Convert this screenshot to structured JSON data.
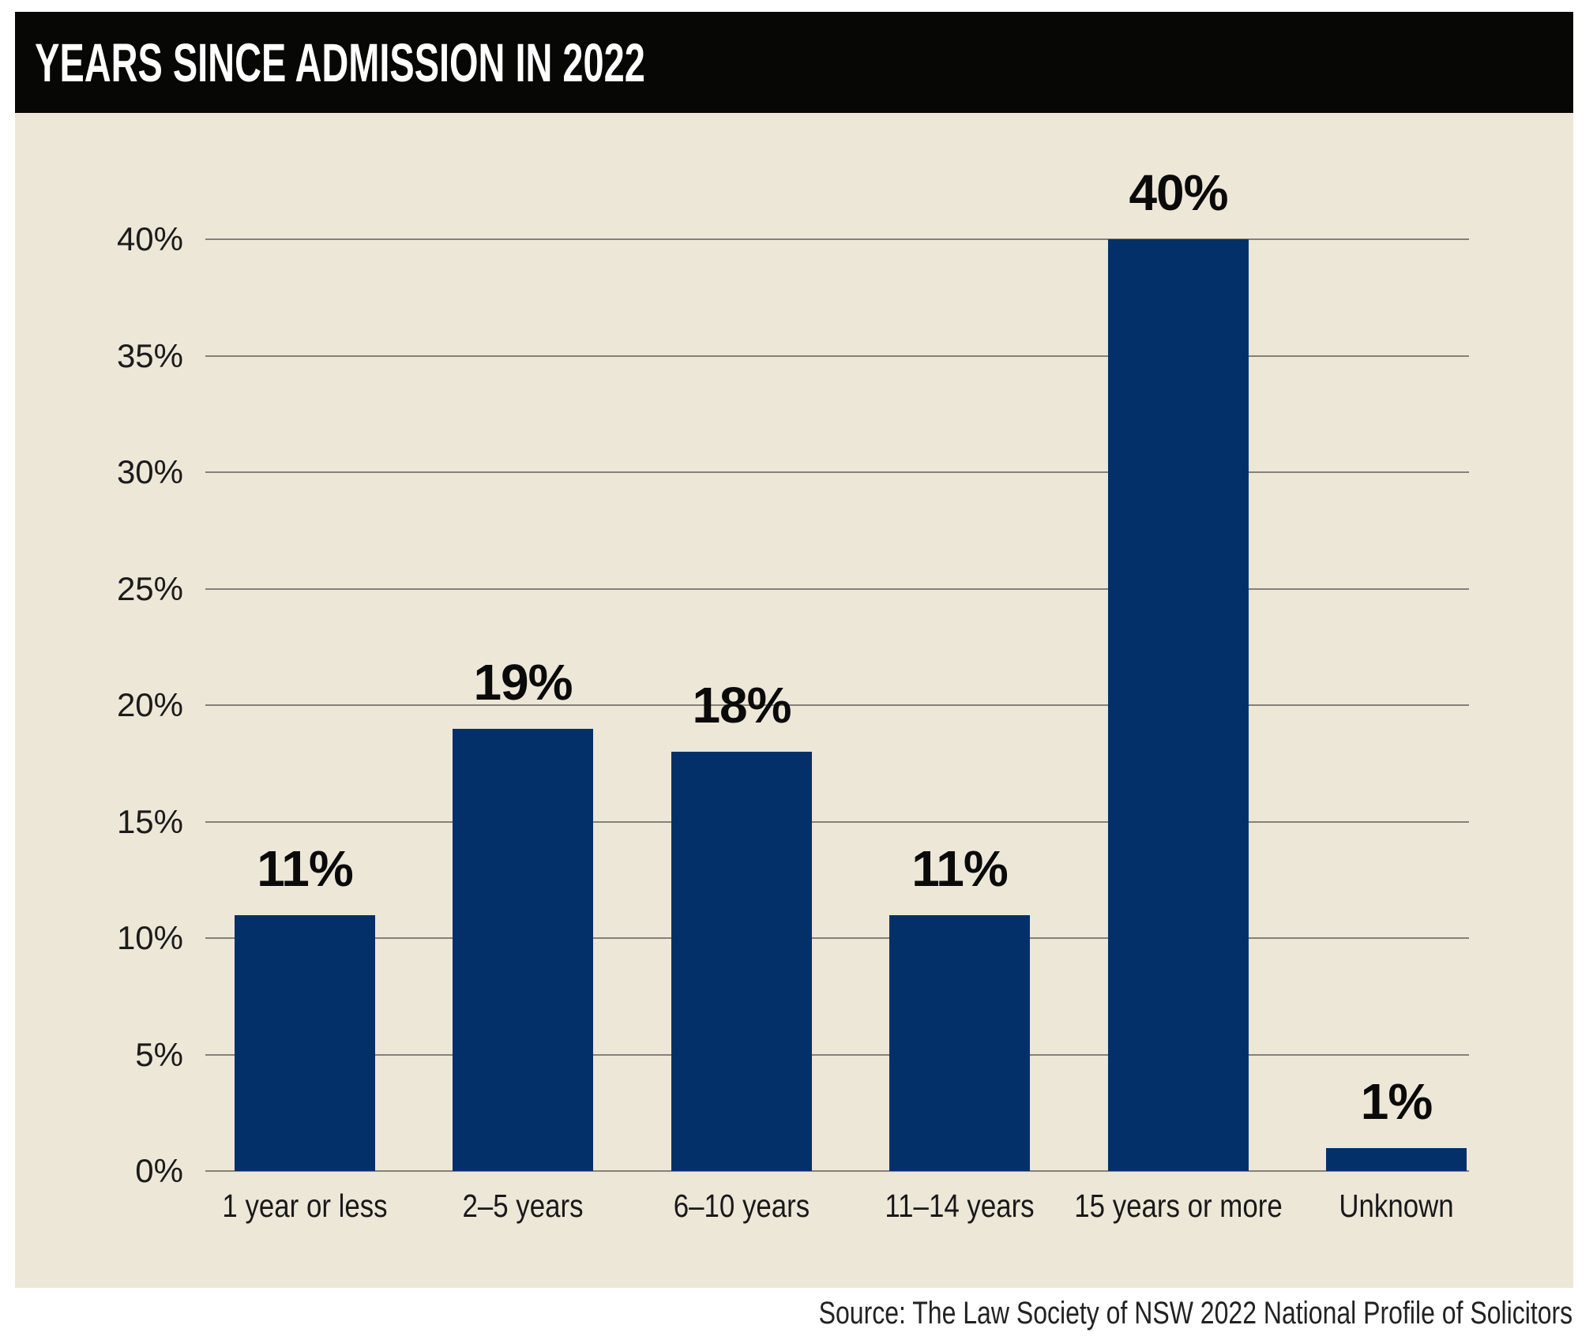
{
  "header": {
    "title": "YEARS SINCE ADMISSION IN 2022"
  },
  "source": {
    "text": "Source: The Law Society of NSW 2022 National Profile of Solicitors"
  },
  "colors": {
    "page_bg": "#ffffff",
    "header_bg": "#070705",
    "header_text": "#ffffff",
    "chart_bg": "#ede7d8",
    "bar": "#04306a",
    "grid_line": "#85817a",
    "tick_text": "#1b1b1b",
    "value_text": "#0a0a0a"
  },
  "chart_data": {
    "type": "bar",
    "title": "YEARS SINCE ADMISSION IN 2022",
    "categories": [
      "1 year or less",
      "2–5 years",
      "6–10 years",
      "11–14 years",
      "15 years or more",
      "Unknown"
    ],
    "values": [
      11,
      19,
      18,
      11,
      40,
      1
    ],
    "value_labels": [
      "11%",
      "19%",
      "18%",
      "11%",
      "40%",
      "1%"
    ],
    "unit": "%",
    "xlabel": "",
    "ylabel": "",
    "ylim": [
      0,
      40
    ],
    "ytick_step": 5,
    "ytick_labels": [
      "0%",
      "5%",
      "10%",
      "15%",
      "20%",
      "25%",
      "30%",
      "35%",
      "40%"
    ],
    "grid": true,
    "legend": false,
    "source": "Source: The Law Society of NSW 2022 National Profile of Solicitors"
  }
}
